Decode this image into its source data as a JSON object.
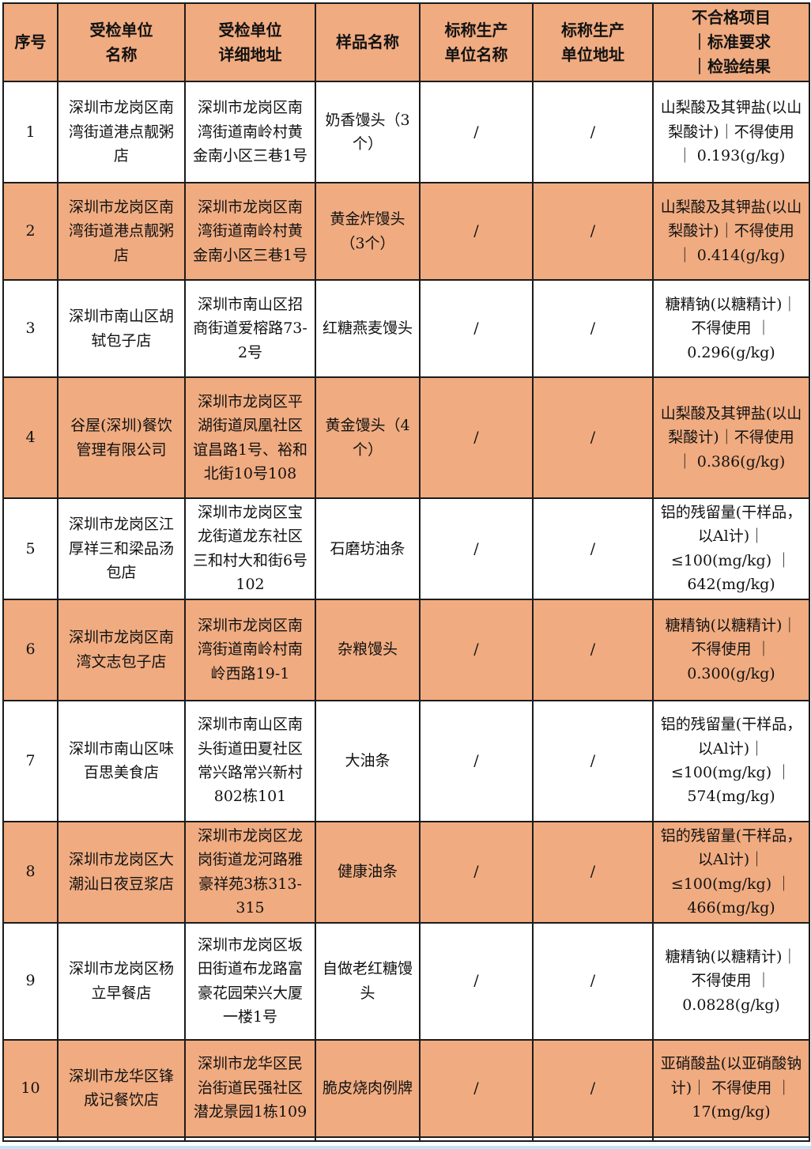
{
  "colors": {
    "header_bg": "#F0AB80",
    "row_alt_bg": "#F0AB80",
    "row_bg": "#FFFFFF",
    "border": "#1C1C1C",
    "text": "#121212",
    "bottom_strip": "#BEE4F5"
  },
  "table": {
    "headers": {
      "index": "序号",
      "unit_name": "受检单位\n名称",
      "unit_address": "受检单位\n详细地址",
      "sample_name": "样品名称",
      "producer_name": "标称生产\n单位名称",
      "producer_address": "标称生产\n单位地址",
      "result": "不合格项目\n｜标准要求\n｜检验结果"
    },
    "rows": [
      {
        "index": "1",
        "unit_name": "深圳市龙岗区南湾街道港点靓粥店",
        "unit_address": "深圳市龙岗区南湾街道南岭村黄金南小区三巷1号",
        "sample_name": "奶香馒头（3个）",
        "producer_name": "/",
        "producer_address": "/",
        "result": "山梨酸及其钾盐(以山梨酸计)｜不得使用 ｜ 0.193(g/kg)"
      },
      {
        "index": "2",
        "unit_name": "深圳市龙岗区南湾街道港点靓粥店",
        "unit_address": "深圳市龙岗区南湾街道南岭村黄金南小区三巷1号",
        "sample_name": "黄金炸馒头（3个）",
        "producer_name": "/",
        "producer_address": "/",
        "result": "山梨酸及其钾盐(以山梨酸计)｜不得使用 ｜ 0.414(g/kg)"
      },
      {
        "index": "3",
        "unit_name": "深圳市南山区胡轼包子店",
        "unit_address": "深圳市南山区招商街道爱榕路73-2号",
        "sample_name": "红糖燕麦馒头",
        "producer_name": "/",
        "producer_address": "/",
        "result": "糖精钠(以糖精计)｜ 不得使用 ｜ 0.296(g/kg)"
      },
      {
        "index": "4",
        "unit_name": "谷屋(深圳)餐饮管理有限公司",
        "unit_address": "深圳市龙岗区平湖街道凤凰社区谊昌路1号、裕和北街10号108",
        "sample_name": "黄金馒头（4个）",
        "producer_name": "/",
        "producer_address": "/",
        "result": "山梨酸及其钾盐(以山梨酸计)｜不得使用 ｜ 0.386(g/kg)"
      },
      {
        "index": "5",
        "unit_name": "深圳市龙岗区江厚祥三和梁品汤包店",
        "unit_address": "深圳市龙岗区宝龙街道龙东社区三和村大和街6号102",
        "sample_name": "石磨坊油条",
        "producer_name": "/",
        "producer_address": "/",
        "result": "铝的残留量(干样品，以Al计)｜≤100(mg/kg) ｜ 642(mg/kg)"
      },
      {
        "index": "6",
        "unit_name": "深圳市龙岗区南湾文志包子店",
        "unit_address": "深圳市龙岗区南湾街道南岭村南岭西路19-1",
        "sample_name": "杂粮馒头",
        "producer_name": "/",
        "producer_address": "/",
        "result": "糖精钠(以糖精计)｜ 不得使用 ｜ 0.300(g/kg)"
      },
      {
        "index": "7",
        "unit_name": "深圳市南山区味百思美食店",
        "unit_address": "深圳市南山区南头街道田夏社区常兴路常兴新村802栋101",
        "sample_name": "大油条",
        "producer_name": "/",
        "producer_address": "/",
        "result": "铝的残留量(干样品，以Al计)｜≤100(mg/kg) ｜ 574(mg/kg)"
      },
      {
        "index": "8",
        "unit_name": "深圳市龙岗区大潮汕日夜豆浆店",
        "unit_address": "深圳市龙岗区龙岗街道龙河路雅豪祥苑3栋313-315",
        "sample_name": "健康油条",
        "producer_name": "/",
        "producer_address": "/",
        "result": "铝的残留量(干样品，以Al计)｜≤100(mg/kg) ｜ 466(mg/kg)"
      },
      {
        "index": "9",
        "unit_name": "深圳市龙岗区杨立早餐店",
        "unit_address": "深圳市龙岗区坂田街道布龙路富豪花园荣兴大厦一楼1号",
        "sample_name": "自做老红糖馒头",
        "producer_name": "/",
        "producer_address": "/",
        "result": "糖精钠(以糖精计)｜ 不得使用 ｜ 0.0828(g/kg)"
      },
      {
        "index": "10",
        "unit_name": "深圳市龙华区锋成记餐饮店",
        "unit_address": "深圳市龙华区民治街道民强社区潜龙景园1栋109",
        "sample_name": "脆皮烧肉例牌",
        "producer_name": "/",
        "producer_address": "/",
        "result": "亚硝酸盐(以亚硝酸钠计)｜ 不得使用 ｜ 17(mg/kg)"
      }
    ]
  }
}
